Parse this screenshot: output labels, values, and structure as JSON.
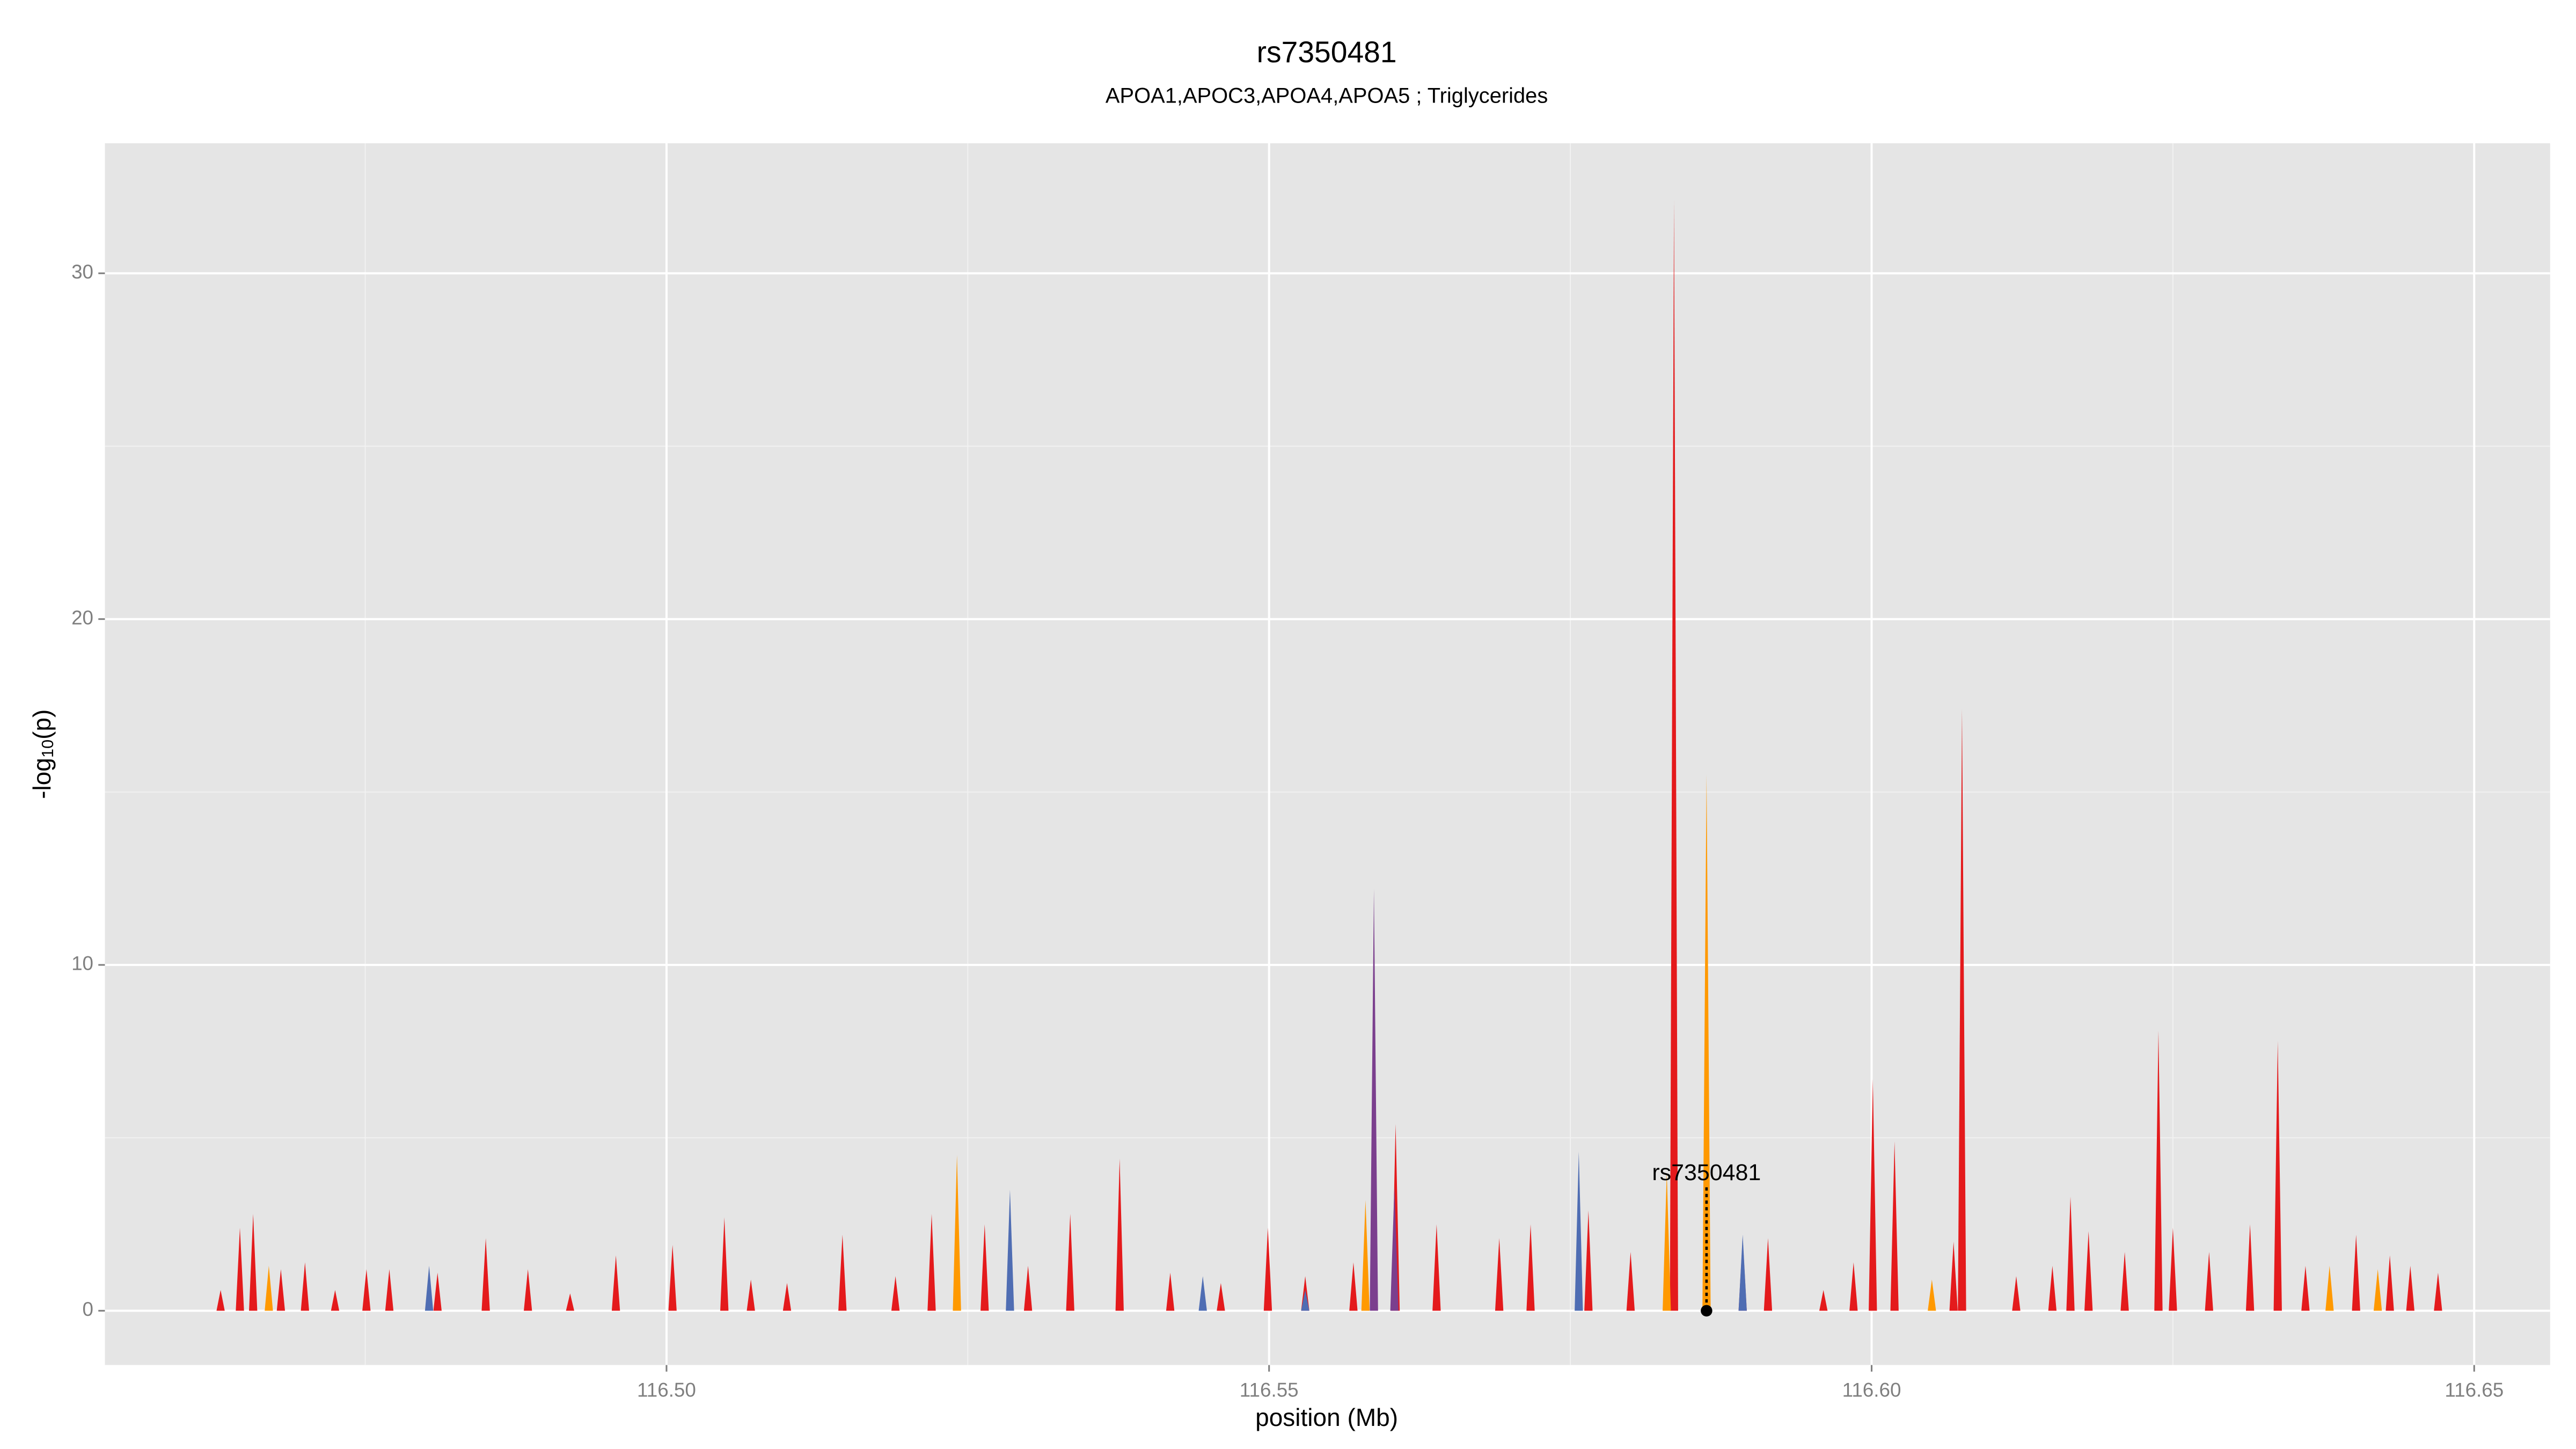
{
  "chart_data": {
    "type": "spike-area",
    "title": "rs7350481",
    "subtitle": "APOA1,APOC3,APOA4,APOA5 ; Triglycerides",
    "xlabel": "position (Mb)",
    "ylabel": {
      "main": "-log",
      "sub": "10",
      "rest": "(p)"
    },
    "xlim": [
      116.4534,
      116.6563
    ],
    "ylim": [
      -1.57,
      33.76
    ],
    "xticks": [
      {
        "value": 116.5,
        "label": "116.50"
      },
      {
        "value": 116.55,
        "label": "116.55"
      },
      {
        "value": 116.6,
        "label": "116.60"
      },
      {
        "value": 116.65,
        "label": "116.65"
      }
    ],
    "xminorticks": [
      116.475,
      116.525,
      116.575,
      116.625
    ],
    "yticks": [
      0,
      10,
      20,
      30
    ],
    "yminorticks": [
      5,
      15,
      25
    ],
    "grid": true,
    "series": [
      {
        "color": "#e41a1c",
        "x": [
          116.463,
          116.4646,
          116.4657,
          116.468,
          116.47,
          116.4725,
          116.4751,
          116.477,
          116.481,
          116.485,
          116.4885,
          116.492,
          116.4958,
          116.5005,
          116.5048,
          116.507,
          116.51,
          116.5146,
          116.519,
          116.522,
          116.5264,
          116.53,
          116.5335,
          116.5376,
          116.5418,
          116.546,
          116.5499,
          116.553,
          116.557,
          116.5605,
          116.5639,
          116.5691,
          116.5717,
          116.5765,
          116.58,
          116.5836,
          116.5863,
          116.5893,
          116.5914,
          116.596,
          116.5985,
          116.6001,
          116.6019,
          116.6068,
          116.6075,
          116.612,
          116.615,
          116.6165,
          116.618,
          116.621,
          116.6238,
          116.625,
          116.628,
          116.6314,
          116.6337,
          116.636,
          116.6402,
          116.643,
          116.6447,
          116.647
        ],
        "values": [
          0.6,
          2.4,
          2.8,
          1.2,
          1.4,
          0.6,
          1.2,
          1.2,
          1.1,
          2.1,
          1.2,
          0.5,
          1.6,
          1.9,
          2.7,
          0.9,
          0.8,
          2.2,
          1.0,
          2.8,
          2.5,
          1.3,
          2.8,
          4.4,
          1.1,
          0.8,
          2.4,
          1.0,
          1.4,
          5.4,
          2.5,
          2.1,
          2.5,
          2.9,
          1.7,
          32.1,
          5.0,
          2.1,
          2.1,
          0.6,
          1.4,
          6.7,
          4.9,
          2.0,
          17.4,
          1.0,
          1.3,
          3.3,
          2.3,
          1.7,
          8.1,
          2.4,
          1.7,
          2.5,
          7.8,
          1.3,
          2.2,
          1.6,
          1.3,
          1.1
        ]
      },
      {
        "color": "#ff9900",
        "x": [
          116.467,
          116.5241,
          116.558,
          116.583,
          116.5863,
          116.605,
          116.638,
          116.642
        ],
        "values": [
          1.3,
          4.5,
          3.2,
          4.0,
          15.5,
          0.9,
          1.3,
          1.2
        ]
      },
      {
        "color": "#4f6db3",
        "x": [
          116.4803,
          116.5285,
          116.5445,
          116.553,
          116.5757,
          116.5893
        ],
        "values": [
          1.3,
          3.5,
          1.0,
          0.6,
          4.6,
          2.2
        ]
      },
      {
        "color": "#7b3f8e",
        "x": [
          116.5587,
          116.5604
        ],
        "values": [
          12.2,
          3.6
        ]
      }
    ],
    "annotations": [
      {
        "text": "rs7350481",
        "x": 116.5863,
        "y": 3.95,
        "point_y": 0
      }
    ]
  }
}
